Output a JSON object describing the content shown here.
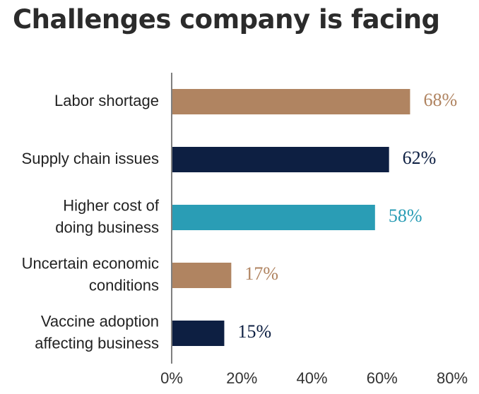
{
  "chart_data": {
    "type": "bar",
    "orientation": "horizontal",
    "title": "Challenges company is facing",
    "categories": [
      [
        "Labor shortage"
      ],
      [
        "Supply chain issues"
      ],
      [
        "Higher cost of",
        "doing business"
      ],
      [
        "Uncertain economic",
        "conditions"
      ],
      [
        "Vaccine adoption",
        "affecting business"
      ]
    ],
    "values": [
      68,
      62,
      58,
      17,
      15
    ],
    "value_labels": [
      "68%",
      "62%",
      "58%",
      "17%",
      "15%"
    ],
    "colors": [
      "#b08461",
      "#0d1f42",
      "#2a9db5",
      "#b08461",
      "#0d1f42"
    ],
    "xlim": [
      0,
      80
    ],
    "xticks": [
      0,
      20,
      40,
      60,
      80
    ],
    "xtick_labels": [
      "0%",
      "20%",
      "40%",
      "60%",
      "80%"
    ],
    "grid": false,
    "legend": "none"
  }
}
